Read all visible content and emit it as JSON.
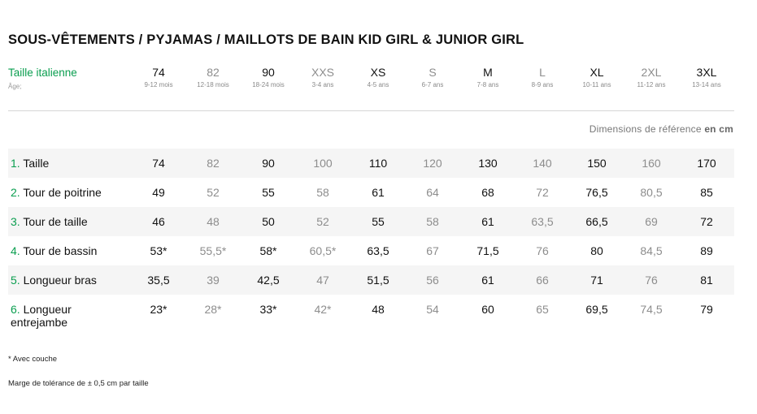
{
  "title": "SOUS-VÊTEMENTS / PYJAMAS / MAILLOTS DE BAIN KID GIRL & JUNIOR GIRL",
  "size_header": {
    "label": "Taille italienne",
    "age_label": "Âge;",
    "sizes": [
      {
        "name": "74",
        "age": "9-12 mois"
      },
      {
        "name": "82",
        "age": "12-18 mois"
      },
      {
        "name": "90",
        "age": "18-24 mois"
      },
      {
        "name": "XXS",
        "age": "3-4 ans"
      },
      {
        "name": "XS",
        "age": "4-5 ans"
      },
      {
        "name": "S",
        "age": "6-7 ans"
      },
      {
        "name": "M",
        "age": "7-8 ans"
      },
      {
        "name": "L",
        "age": "8-9 ans"
      },
      {
        "name": "XL",
        "age": "10-11 ans"
      },
      {
        "name": "2XL",
        "age": "11-12 ans"
      },
      {
        "name": "3XL",
        "age": "13-14 ans"
      }
    ]
  },
  "units": {
    "prefix": "Dimensions de référence",
    "unit": "en cm"
  },
  "rows": [
    {
      "num": "1.",
      "label": "Taille",
      "values": [
        "74",
        "82",
        "90",
        "100",
        "110",
        "120",
        "130",
        "140",
        "150",
        "160",
        "170"
      ]
    },
    {
      "num": "2.",
      "label": "Tour de poitrine",
      "values": [
        "49",
        "52",
        "55",
        "58",
        "61",
        "64",
        "68",
        "72",
        "76,5",
        "80,5",
        "85"
      ]
    },
    {
      "num": "3.",
      "label": "Tour de taille",
      "values": [
        "46",
        "48",
        "50",
        "52",
        "55",
        "58",
        "61",
        "63,5",
        "66,5",
        "69",
        "72"
      ]
    },
    {
      "num": "4.",
      "label": "Tour de bassin",
      "values": [
        "53*",
        "55,5*",
        "58*",
        "60,5*",
        "63,5",
        "67",
        "71,5",
        "76",
        "80",
        "84,5",
        "89"
      ]
    },
    {
      "num": "5.",
      "label": "Longueur bras",
      "values": [
        "35,5",
        "39",
        "42,5",
        "47",
        "51,5",
        "56",
        "61",
        "66",
        "71",
        "76",
        "81"
      ]
    },
    {
      "num": "6.",
      "label": "Longueur entrejambe",
      "values": [
        "23*",
        "28*",
        "33*",
        "42*",
        "48",
        "54",
        "60",
        "65",
        "69,5",
        "74,5",
        "79"
      ]
    }
  ],
  "footnotes": {
    "note1": "* Avec couche",
    "note2": "Marge de tolérance de ± 0,5 cm par taille"
  },
  "colors": {
    "accent": "#0a9e4f",
    "row_shade": "#f5f5f5",
    "muted": "#8d8d8d"
  }
}
